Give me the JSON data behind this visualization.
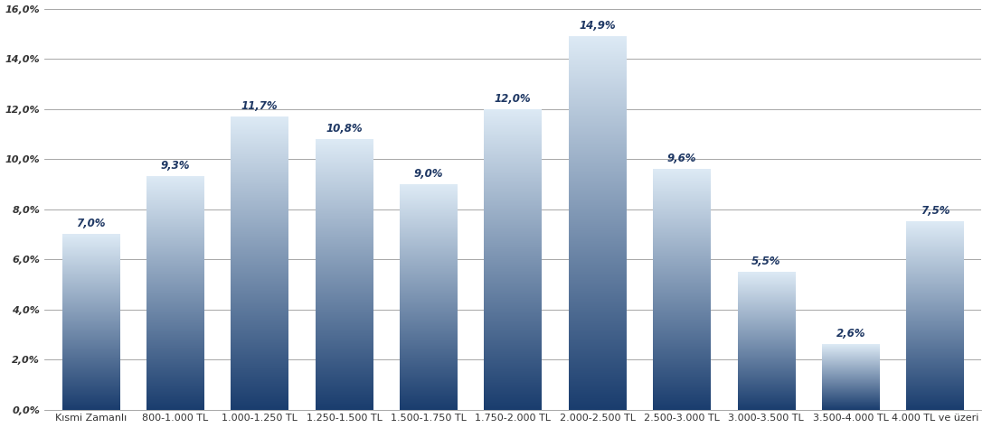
{
  "categories": [
    "Kısmi Zamanlı",
    "800-1.000 TL",
    "1.000-1.250 TL",
    "1.250-1.500 TL",
    "1.500-1.750 TL",
    "1.750-2.000 TL",
    "2.000-2.500 TL",
    "2.500-3.000 TL",
    "3.000-3.500 TL",
    "3.500-4.000 TL",
    "4.000 TL ve üzeri"
  ],
  "values": [
    7.0,
    9.3,
    11.7,
    10.8,
    9.0,
    12.0,
    14.9,
    9.6,
    5.5,
    2.6,
    7.5
  ],
  "labels": [
    "7,0%",
    "9,3%",
    "11,7%",
    "10,8%",
    "9,0%",
    "12,0%",
    "14,9%",
    "9,6%",
    "5,5%",
    "2,6%",
    "7,5%"
  ],
  "ylim": [
    0,
    16.0
  ],
  "yticks": [
    0,
    2.0,
    4.0,
    6.0,
    8.0,
    10.0,
    12.0,
    14.0,
    16.0
  ],
  "ytick_labels": [
    "0,0%",
    "2,0%",
    "4,0%",
    "6,0%",
    "8,0%",
    "10,0%",
    "12,0%",
    "14,0%",
    "16,0%"
  ],
  "bar_top_color": "#ddeaf5",
  "bar_bottom_color": "#1a3d6e",
  "background_color": "#ffffff",
  "grid_color": "#999999",
  "label_fontsize": 8.5,
  "tick_fontsize": 8.0,
  "bar_width": 0.68,
  "label_color": "#1f3864",
  "bar_gap": 0.32
}
